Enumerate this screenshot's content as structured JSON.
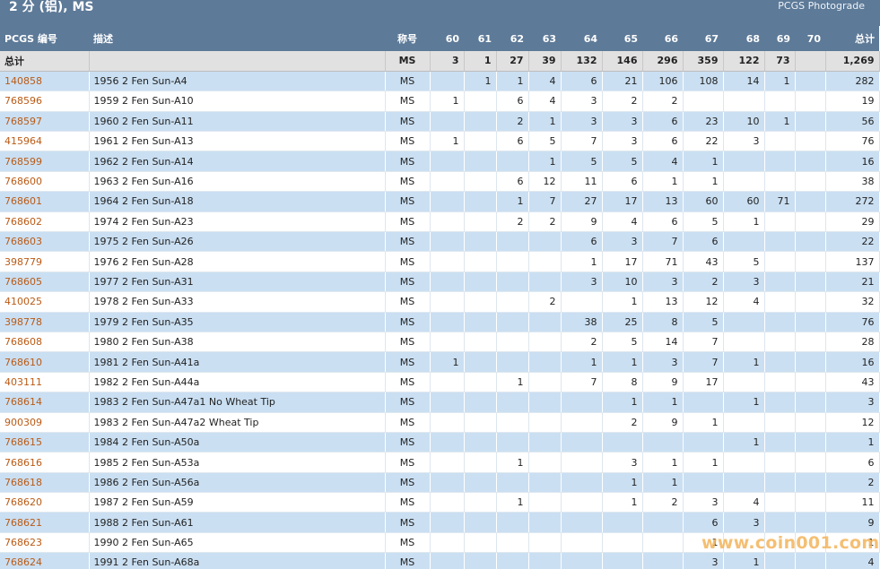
{
  "header": {
    "title": "2 分 (铝), MS",
    "photograde_link": "PCGS Photograde"
  },
  "table": {
    "columns": [
      "PCGS 编号",
      "描述",
      "称号",
      "60",
      "61",
      "62",
      "63",
      "64",
      "65",
      "66",
      "67",
      "68",
      "69",
      "70",
      "总计"
    ],
    "total_row": [
      "总计",
      "",
      "MS",
      "3",
      "1",
      "27",
      "39",
      "132",
      "146",
      "296",
      "359",
      "122",
      "73",
      "",
      "1,269"
    ],
    "rows": [
      [
        "140858",
        "1956 2 Fen Sun-A4",
        "MS",
        "",
        "1",
        "1",
        "4",
        "6",
        "21",
        "106",
        "108",
        "14",
        "1",
        "",
        "282"
      ],
      [
        "768596",
        "1959 2 Fen Sun-A10",
        "MS",
        "1",
        "",
        "6",
        "4",
        "3",
        "2",
        "2",
        "",
        "",
        "",
        "",
        "19"
      ],
      [
        "768597",
        "1960 2 Fen Sun-A11",
        "MS",
        "",
        "",
        "2",
        "1",
        "3",
        "3",
        "6",
        "23",
        "10",
        "1",
        "",
        "56"
      ],
      [
        "415964",
        "1961 2 Fen Sun-A13",
        "MS",
        "1",
        "",
        "6",
        "5",
        "7",
        "3",
        "6",
        "22",
        "3",
        "",
        "",
        "76"
      ],
      [
        "768599",
        "1962 2 Fen Sun-A14",
        "MS",
        "",
        "",
        "",
        "1",
        "5",
        "5",
        "4",
        "1",
        "",
        "",
        "",
        "16"
      ],
      [
        "768600",
        "1963 2 Fen Sun-A16",
        "MS",
        "",
        "",
        "6",
        "12",
        "11",
        "6",
        "1",
        "1",
        "",
        "",
        "",
        "38"
      ],
      [
        "768601",
        "1964 2 Fen Sun-A18",
        "MS",
        "",
        "",
        "1",
        "7",
        "27",
        "17",
        "13",
        "60",
        "60",
        "71",
        "",
        "272"
      ],
      [
        "768602",
        "1974 2 Fen Sun-A23",
        "MS",
        "",
        "",
        "2",
        "2",
        "9",
        "4",
        "6",
        "5",
        "1",
        "",
        "",
        "29"
      ],
      [
        "768603",
        "1975 2 Fen Sun-A26",
        "MS",
        "",
        "",
        "",
        "",
        "6",
        "3",
        "7",
        "6",
        "",
        "",
        "",
        "22"
      ],
      [
        "398779",
        "1976 2 Fen Sun-A28",
        "MS",
        "",
        "",
        "",
        "",
        "1",
        "17",
        "71",
        "43",
        "5",
        "",
        "",
        "137"
      ],
      [
        "768605",
        "1977 2 Fen Sun-A31",
        "MS",
        "",
        "",
        "",
        "",
        "3",
        "10",
        "3",
        "2",
        "3",
        "",
        "",
        "21"
      ],
      [
        "410025",
        "1978 2 Fen Sun-A33",
        "MS",
        "",
        "",
        "",
        "2",
        "",
        "1",
        "13",
        "12",
        "4",
        "",
        "",
        "32"
      ],
      [
        "398778",
        "1979 2 Fen Sun-A35",
        "MS",
        "",
        "",
        "",
        "",
        "38",
        "25",
        "8",
        "5",
        "",
        "",
        "",
        "76"
      ],
      [
        "768608",
        "1980 2 Fen Sun-A38",
        "MS",
        "",
        "",
        "",
        "",
        "2",
        "5",
        "14",
        "7",
        "",
        "",
        "",
        "28"
      ],
      [
        "768610",
        "1981 2 Fen Sun-A41a",
        "MS",
        "1",
        "",
        "",
        "",
        "1",
        "1",
        "3",
        "7",
        "1",
        "",
        "",
        "16"
      ],
      [
        "403111",
        "1982 2 Fen Sun-A44a",
        "MS",
        "",
        "",
        "1",
        "",
        "7",
        "8",
        "9",
        "17",
        "",
        "",
        "",
        "43"
      ],
      [
        "768614",
        "1983 2 Fen Sun-A47a1 No Wheat Tip",
        "MS",
        "",
        "",
        "",
        "",
        "",
        "1",
        "1",
        "",
        "1",
        "",
        "",
        "3"
      ],
      [
        "900309",
        "1983 2 Fen Sun-A47a2 Wheat Tip",
        "MS",
        "",
        "",
        "",
        "",
        "",
        "2",
        "9",
        "1",
        "",
        "",
        "",
        "12"
      ],
      [
        "768615",
        "1984 2 Fen Sun-A50a",
        "MS",
        "",
        "",
        "",
        "",
        "",
        "",
        "",
        "",
        "1",
        "",
        "",
        "1"
      ],
      [
        "768616",
        "1985 2 Fen Sun-A53a",
        "MS",
        "",
        "",
        "1",
        "",
        "",
        "3",
        "1",
        "1",
        "",
        "",
        "",
        "6"
      ],
      [
        "768618",
        "1986 2 Fen Sun-A56a",
        "MS",
        "",
        "",
        "",
        "",
        "",
        "1",
        "1",
        "",
        "",
        "",
        "",
        "2"
      ],
      [
        "768620",
        "1987 2 Fen Sun-A59",
        "MS",
        "",
        "",
        "1",
        "",
        "",
        "1",
        "2",
        "3",
        "4",
        "",
        "",
        "11"
      ],
      [
        "768621",
        "1988 2 Fen Sun-A61",
        "MS",
        "",
        "",
        "",
        "",
        "",
        "",
        "",
        "6",
        "3",
        "",
        "",
        "9"
      ],
      [
        "768623",
        "1990 2 Fen Sun-A65",
        "MS",
        "",
        "",
        "",
        "",
        "",
        "",
        "",
        "1",
        "",
        "",
        "",
        "1"
      ],
      [
        "768624",
        "1991 2 Fen Sun-A68a",
        "MS",
        "",
        "",
        "",
        "",
        "",
        "",
        "",
        "3",
        "1",
        "",
        "",
        "4"
      ]
    ]
  },
  "watermark": "www.coin001.com",
  "colors": {
    "header_bg": "#5d7a98",
    "row_alt": "#cadff2",
    "link": "#bb5a14",
    "total_bg": "#e1e1e1"
  }
}
